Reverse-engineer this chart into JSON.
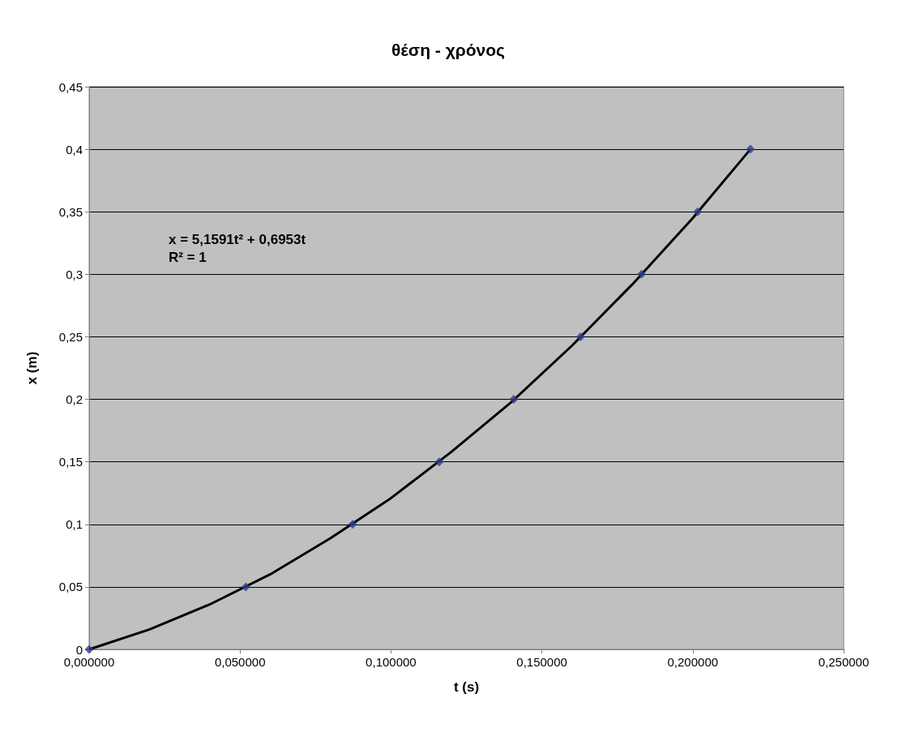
{
  "chart_data": {
    "type": "scatter",
    "title": "θέση - χρόνος",
    "xlabel": "t (s)",
    "ylabel": "x (m)",
    "annotations": [
      "x = 5,1591t² + 0,6953t\nR² = 1"
    ],
    "marker": "diamond",
    "grid": "y",
    "xlim": [
      0,
      0.25
    ],
    "xticks": [
      {
        "value": 0,
        "label": "0,000000"
      },
      {
        "value": 0.05,
        "label": "0,050000"
      },
      {
        "value": 0.1,
        "label": "0,100000"
      },
      {
        "value": 0.15,
        "label": "0,150000"
      },
      {
        "value": 0.2,
        "label": "0,200000"
      },
      {
        "value": 0.25,
        "label": "0,250000"
      }
    ],
    "ylim": [
      0,
      0.45
    ],
    "yticks": [
      0,
      {
        "value": 0.05,
        "label": "0,05"
      },
      {
        "value": 0.1,
        "label": "0,1"
      },
      {
        "value": 0.15,
        "label": "0,15"
      },
      {
        "value": 0.2,
        "label": "0,2"
      },
      {
        "value": 0.25,
        "label": "0,25"
      },
      {
        "value": 0.3,
        "label": "0,3"
      },
      {
        "value": 0.35,
        "label": "0,35"
      },
      {
        "value": 0.4,
        "label": "0,4"
      },
      {
        "value": 0.45,
        "label": "0,45"
      }
    ],
    "series": [
      {
        "type": "line",
        "marker": "none",
        "color": "#000000",
        "x": [
          0,
          0.02,
          0.04,
          0.06,
          0.08,
          0.1,
          0.12,
          0.14,
          0.16,
          0.18,
          0.2,
          0.2191
        ],
        "values": [
          0,
          0.016,
          0.036,
          0.06,
          0.089,
          0.121,
          0.158,
          0.198,
          0.243,
          0.292,
          0.345,
          0.4
        ]
      },
      {
        "color": "#2e3d8f",
        "x": [
          0,
          0.0519,
          0.0873,
          0.116,
          0.1407,
          0.1628,
          0.183,
          0.2016,
          0.2191
        ],
        "values": [
          0,
          0.05,
          0.1,
          0.15,
          0.2,
          0.25,
          0.3,
          0.35,
          0.4
        ]
      }
    ]
  }
}
